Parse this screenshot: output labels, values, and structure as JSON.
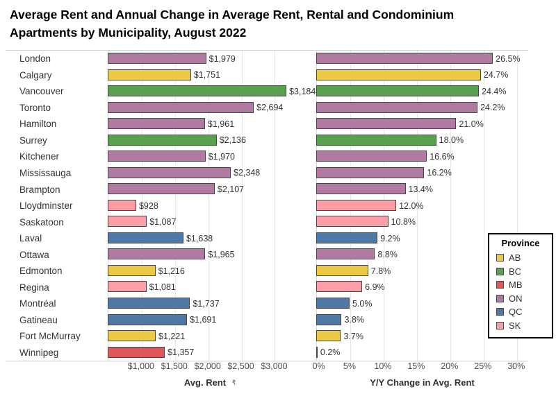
{
  "title": "Average Rent and Annual Change in Average Rent, Rental and Condominium Apartments by Municipality, August 2022",
  "chart_data": {
    "type": "bar",
    "orientation": "horizontal",
    "grid": true,
    "categories": [
      "London",
      "Calgary",
      "Vancouver",
      "Toronto",
      "Hamilton",
      "Surrey",
      "Kitchener",
      "Mississauga",
      "Brampton",
      "Lloydminster",
      "Saskatoon",
      "Laval",
      "Ottawa",
      "Edmonton",
      "Regina",
      "Montréal",
      "Gatineau",
      "Fort McMurray",
      "Winnipeg"
    ],
    "category_provinces": [
      "ON",
      "AB",
      "BC",
      "ON",
      "ON",
      "BC",
      "ON",
      "ON",
      "ON",
      "SK",
      "SK",
      "QC",
      "ON",
      "AB",
      "SK",
      "QC",
      "QC",
      "AB",
      "MB"
    ],
    "series": [
      {
        "name": "Avg. Rent",
        "axis_label": "Avg. Rent",
        "values": [
          1979,
          1751,
          3184,
          2694,
          1961,
          2136,
          1970,
          2348,
          2107,
          928,
          1087,
          1638,
          1965,
          1216,
          1081,
          1737,
          1691,
          1221,
          1357
        ],
        "labels": [
          "$1,979",
          "$1,751",
          "$3,184",
          "$2,694",
          "$1,961",
          "$2,136",
          "$1,970",
          "$2,348",
          "$2,107",
          "$928",
          "$1,087",
          "$1,638",
          "$1,965",
          "$1,216",
          "$1,081",
          "$1,737",
          "$1,691",
          "$1,221",
          "$1,357"
        ],
        "axis_range": [
          500,
          3580
        ],
        "tick_values": [
          1000,
          1500,
          2000,
          2500,
          3000
        ],
        "tick_labels": [
          "$1,000",
          "$1,500",
          "$2,000",
          "$2,500",
          "$3,000"
        ],
        "sorted": true
      },
      {
        "name": "Y/Y Change in Avg. Rent",
        "axis_label": "Y/Y Change in Avg. Rent",
        "values": [
          26.5,
          24.7,
          24.4,
          24.2,
          21.0,
          18.0,
          16.6,
          16.2,
          13.4,
          12.0,
          10.8,
          9.2,
          8.8,
          7.8,
          6.9,
          5.0,
          3.8,
          3.7,
          0.2
        ],
        "labels": [
          "26.5%",
          "24.7%",
          "24.4%",
          "24.2%",
          "21.0%",
          "18.0%",
          "16.6%",
          "16.2%",
          "13.4%",
          "12.0%",
          "10.8%",
          "9.2%",
          "8.8%",
          "7.8%",
          "6.9%",
          "5.0%",
          "3.8%",
          "3.7%",
          "0.2%"
        ],
        "axis_range": [
          0,
          31.8
        ],
        "tick_values": [
          0,
          5,
          10,
          15,
          20,
          25,
          30
        ],
        "tick_labels": [
          "0%",
          "5%",
          "10%",
          "15%",
          "20%",
          "25%",
          "30%"
        ]
      }
    ],
    "legend": {
      "title": "Province",
      "position": "right-middle",
      "entries": [
        {
          "label": "AB",
          "color": "#EDC948"
        },
        {
          "label": "BC",
          "color": "#59A14F"
        },
        {
          "label": "MB",
          "color": "#E15759"
        },
        {
          "label": "ON",
          "color": "#B07AA1"
        },
        {
          "label": "QC",
          "color": "#4E79A7"
        },
        {
          "label": "SK",
          "color": "#FF9DA7"
        }
      ]
    },
    "style": {
      "bar_border_color": "#464646",
      "gridline_color": "#e8e8e8",
      "plot_border_color": "#cfcfcf",
      "label_color": "#333333",
      "tick_color": "#4e4e4e"
    }
  }
}
